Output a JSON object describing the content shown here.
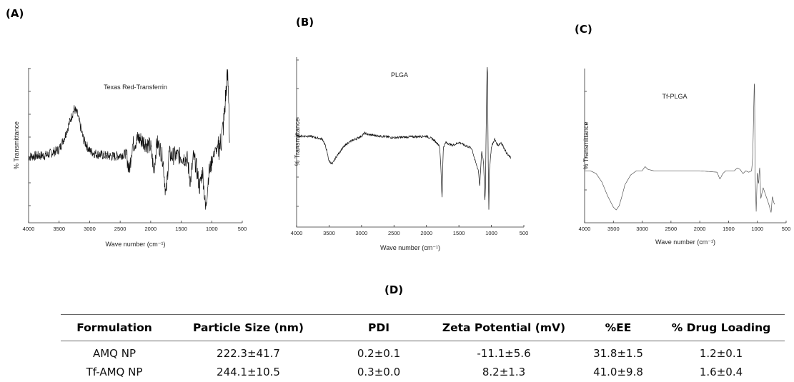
{
  "panels": {
    "a": {
      "letter": "(A)"
    },
    "b": {
      "letter": "(B)"
    },
    "c": {
      "letter": "(C)"
    },
    "d": {
      "letter": "(D)"
    }
  },
  "chart_data": [
    {
      "type": "line",
      "title": "Texas Red-Transferrin",
      "xlabel": "Wave number (cm⁻¹)",
      "ylabel": "% Transmittance",
      "xlim": [
        4000,
        500
      ],
      "x_reversed": true,
      "xticks": [
        "4000",
        "3500",
        "3000",
        "2500",
        "2000",
        "1500",
        "1000",
        "500"
      ],
      "yticks_labeled": false,
      "noise": "high",
      "series": [
        {
          "x": [
            4000,
            3700,
            3500,
            3400,
            3300,
            3250,
            3200,
            3100,
            3000,
            2900,
            2800,
            2600,
            2400,
            2350,
            2300,
            2200,
            2100,
            2000,
            1950,
            1900,
            1850,
            1800,
            1750,
            1700,
            1650,
            1600,
            1500,
            1400,
            1350,
            1300,
            1250,
            1200,
            1150,
            1100,
            1050,
            1000,
            950,
            900,
            850,
            800,
            780,
            760,
            740,
            720,
            710
          ],
          "y": [
            0.4,
            0.41,
            0.45,
            0.55,
            0.68,
            0.74,
            0.7,
            0.52,
            0.44,
            0.42,
            0.41,
            0.4,
            0.42,
            0.3,
            0.48,
            0.53,
            0.5,
            0.47,
            0.3,
            0.5,
            0.46,
            0.38,
            0.12,
            0.42,
            0.4,
            0.41,
            0.4,
            0.38,
            0.22,
            0.4,
            0.32,
            0.18,
            0.3,
            0.02,
            0.28,
            0.36,
            0.44,
            0.45,
            0.5,
            0.65,
            0.78,
            0.9,
            0.97,
            0.8,
            0.5
          ]
        }
      ]
    },
    {
      "type": "line",
      "title": "PLGA",
      "xlabel": "Wave number (cm⁻¹)",
      "ylabel": "% Transmittance",
      "xlim": [
        4000,
        500
      ],
      "x_reversed": true,
      "xticks": [
        "4000",
        "3500",
        "3000",
        "2500",
        "2000",
        "1500",
        "1000",
        "500"
      ],
      "yticks_labeled": false,
      "noise": "low",
      "series": [
        {
          "x": [
            4000,
            3800,
            3600,
            3550,
            3500,
            3450,
            3400,
            3300,
            3200,
            3000,
            2950,
            2900,
            2500,
            2000,
            1900,
            1800,
            1780,
            1760,
            1740,
            1700,
            1600,
            1500,
            1400,
            1300,
            1250,
            1200,
            1180,
            1150,
            1120,
            1100,
            1090,
            1080,
            1070,
            1060,
            1050,
            1040,
            1030,
            1000,
            950,
            900,
            850,
            800,
            750,
            700
          ],
          "y": [
            0.52,
            0.52,
            0.5,
            0.45,
            0.36,
            0.34,
            0.38,
            0.44,
            0.48,
            0.52,
            0.54,
            0.53,
            0.51,
            0.52,
            0.5,
            0.46,
            0.34,
            0.12,
            0.45,
            0.48,
            0.46,
            0.48,
            0.46,
            0.44,
            0.36,
            0.3,
            0.2,
            0.42,
            0.35,
            0.1,
            0.2,
            0.6,
            0.92,
            0.99,
            0.4,
            0.04,
            0.3,
            0.45,
            0.5,
            0.46,
            0.48,
            0.44,
            0.4,
            0.38
          ]
        }
      ]
    },
    {
      "type": "line",
      "title": "Tf-PLGA",
      "xlabel": "Wave number (cm⁻¹)",
      "ylabel": "% Transmittance",
      "xlim": [
        4000,
        500
      ],
      "x_reversed": true,
      "xticks": [
        "4000",
        "3500",
        "3000",
        "2500",
        "2000",
        "1500",
        "1000",
        "500"
      ],
      "yticks_labeled": false,
      "noise": "none",
      "series": [
        {
          "x": [
            4000,
            3900,
            3800,
            3700,
            3600,
            3500,
            3450,
            3400,
            3350,
            3300,
            3200,
            3100,
            3000,
            2950,
            2900,
            2800,
            2500,
            2000,
            1700,
            1650,
            1600,
            1550,
            1400,
            1350,
            1300,
            1250,
            1200,
            1150,
            1100,
            1080,
            1060,
            1050,
            1040,
            1020,
            1000,
            980,
            960,
            940,
            900,
            850,
            800,
            760,
            740,
            720,
            700
          ],
          "y": [
            0.3,
            0.3,
            0.28,
            0.22,
            0.12,
            0.04,
            0.02,
            0.05,
            0.12,
            0.2,
            0.27,
            0.3,
            0.3,
            0.33,
            0.31,
            0.3,
            0.3,
            0.3,
            0.29,
            0.24,
            0.28,
            0.3,
            0.3,
            0.32,
            0.31,
            0.28,
            0.3,
            0.29,
            0.3,
            0.4,
            0.8,
            0.99,
            0.3,
            0.0,
            0.3,
            0.2,
            0.33,
            0.1,
            0.18,
            0.12,
            0.06,
            0.0,
            0.12,
            0.08,
            0.06
          ]
        }
      ]
    },
    {
      "type": "table",
      "columns": [
        "Formulation",
        "Particle Size (nm)",
        "PDI",
        "Zeta Potential (mV)",
        "%EE",
        "% Drug Loading"
      ],
      "rows": [
        [
          "AMQ NP",
          "222.3±41.7",
          "0.2±0.1",
          "-11.1±5.6",
          "31.8±1.5",
          "1.2±0.1"
        ],
        [
          "Tf-AMQ NP",
          "244.1±10.5",
          "0.3±0.0",
          "8.2±1.3",
          "41.0±9.8",
          "1.6±0.4"
        ]
      ]
    }
  ]
}
